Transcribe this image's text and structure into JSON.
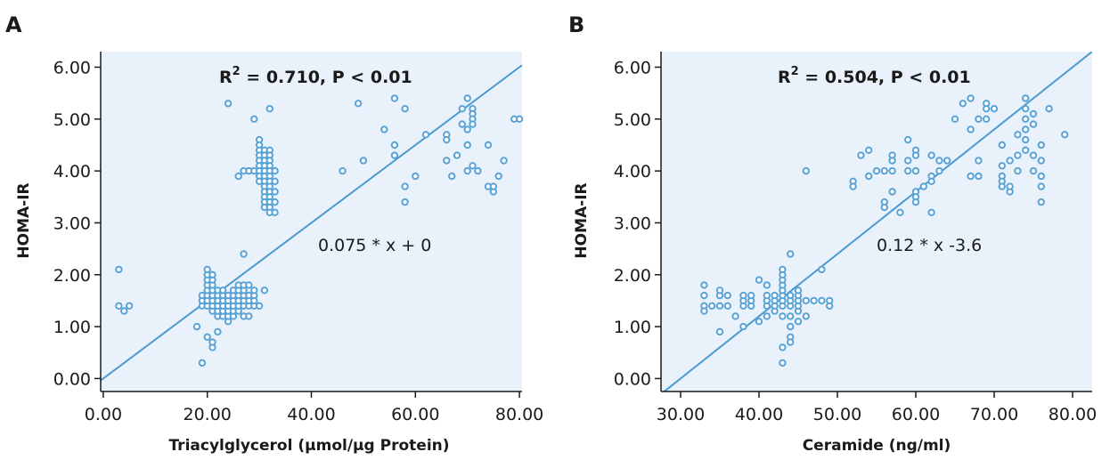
{
  "colors": {
    "plot_bg": "#e9f1fb",
    "marker": "#5aa3d6",
    "fit_line": "#4a9ad2",
    "axis": "#1a1a1a"
  },
  "chart_data": [
    {
      "type": "scatter",
      "panel_label": "A",
      "title": "",
      "xlabel": "Triacylglycerol (μmol/μg Protein)",
      "ylabel": "HOMA-IR",
      "xlim": [
        -0.5,
        80.5
      ],
      "ylim": [
        -0.25,
        6.3
      ],
      "xticks": [
        0,
        20,
        40,
        60,
        80
      ],
      "xtick_labels": [
        "0.00",
        "20.00",
        "40.00",
        "60.00",
        "80.00"
      ],
      "yticks": [
        0,
        1,
        2,
        3,
        4,
        5,
        6
      ],
      "ytick_labels": [
        "0.00",
        "1.00",
        "2.00",
        "3.00",
        "4.00",
        "5.00",
        "6.00"
      ],
      "grid": false,
      "annotation": {
        "prefix": "R",
        "sup": "2",
        "text": " = 0.710, P < 0.01"
      },
      "equation_label": "0.075 * x + 0",
      "fit_line": {
        "slope": 0.075,
        "intercept": 0
      },
      "points": [
        [
          3,
          2.1
        ],
        [
          3,
          1.4
        ],
        [
          4,
          1.3
        ],
        [
          5,
          1.4
        ],
        [
          18,
          1.0
        ],
        [
          19,
          0.3
        ],
        [
          20,
          0.8
        ],
        [
          21,
          0.6
        ],
        [
          21,
          0.7
        ],
        [
          22,
          0.9
        ],
        [
          19,
          1.4
        ],
        [
          19,
          1.5
        ],
        [
          19,
          1.6
        ],
        [
          20,
          1.4
        ],
        [
          20,
          1.5
        ],
        [
          20,
          1.6
        ],
        [
          20,
          1.7
        ],
        [
          20,
          1.8
        ],
        [
          20,
          1.9
        ],
        [
          20,
          2.0
        ],
        [
          20,
          2.1
        ],
        [
          21,
          1.3
        ],
        [
          21,
          1.4
        ],
        [
          21,
          1.5
        ],
        [
          21,
          1.6
        ],
        [
          21,
          1.7
        ],
        [
          21,
          1.8
        ],
        [
          21,
          1.9
        ],
        [
          21,
          2.0
        ],
        [
          22,
          1.2
        ],
        [
          22,
          1.3
        ],
        [
          22,
          1.4
        ],
        [
          22,
          1.5
        ],
        [
          22,
          1.6
        ],
        [
          22,
          1.7
        ],
        [
          23,
          1.2
        ],
        [
          23,
          1.3
        ],
        [
          23,
          1.4
        ],
        [
          23,
          1.5
        ],
        [
          23,
          1.6
        ],
        [
          23,
          1.7
        ],
        [
          24,
          1.1
        ],
        [
          24,
          1.2
        ],
        [
          24,
          1.3
        ],
        [
          24,
          1.4
        ],
        [
          24,
          1.5
        ],
        [
          24,
          1.6
        ],
        [
          25,
          1.2
        ],
        [
          25,
          1.3
        ],
        [
          25,
          1.4
        ],
        [
          25,
          1.5
        ],
        [
          25,
          1.6
        ],
        [
          25,
          1.7
        ],
        [
          26,
          1.3
        ],
        [
          26,
          1.4
        ],
        [
          26,
          1.5
        ],
        [
          26,
          1.6
        ],
        [
          26,
          1.7
        ],
        [
          26,
          1.8
        ],
        [
          27,
          1.2
        ],
        [
          27,
          1.4
        ],
        [
          27,
          1.5
        ],
        [
          27,
          1.6
        ],
        [
          27,
          1.7
        ],
        [
          27,
          1.8
        ],
        [
          28,
          1.2
        ],
        [
          28,
          1.4
        ],
        [
          28,
          1.5
        ],
        [
          28,
          1.6
        ],
        [
          28,
          1.8
        ],
        [
          29,
          1.4
        ],
        [
          29,
          1.5
        ],
        [
          29,
          1.6
        ],
        [
          29,
          1.7
        ],
        [
          30,
          1.4
        ],
        [
          31,
          1.7
        ],
        [
          27,
          2.4
        ],
        [
          24,
          5.3
        ],
        [
          26,
          3.9
        ],
        [
          27,
          4.0
        ],
        [
          28,
          4.0
        ],
        [
          29,
          4.0
        ],
        [
          30,
          4.6
        ],
        [
          30,
          4.5
        ],
        [
          30,
          4.4
        ],
        [
          30,
          4.3
        ],
        [
          30,
          4.2
        ],
        [
          30,
          4.1
        ],
        [
          30,
          4.0
        ],
        [
          30,
          3.9
        ],
        [
          30,
          3.8
        ],
        [
          31,
          4.4
        ],
        [
          31,
          4.3
        ],
        [
          31,
          4.2
        ],
        [
          31,
          4.1
        ],
        [
          31,
          4.0
        ],
        [
          31,
          3.9
        ],
        [
          31,
          3.8
        ],
        [
          31,
          3.7
        ],
        [
          31,
          3.6
        ],
        [
          31,
          3.5
        ],
        [
          31,
          3.4
        ],
        [
          31,
          3.3
        ],
        [
          32,
          4.4
        ],
        [
          32,
          4.3
        ],
        [
          32,
          4.2
        ],
        [
          32,
          4.1
        ],
        [
          32,
          4.0
        ],
        [
          32,
          3.9
        ],
        [
          32,
          3.8
        ],
        [
          32,
          3.7
        ],
        [
          32,
          3.6
        ],
        [
          32,
          3.5
        ],
        [
          32,
          3.4
        ],
        [
          32,
          3.3
        ],
        [
          32,
          3.2
        ],
        [
          33,
          4.0
        ],
        [
          33,
          3.8
        ],
        [
          33,
          3.6
        ],
        [
          33,
          3.4
        ],
        [
          33,
          3.2
        ],
        [
          29,
          5.0
        ],
        [
          32,
          5.2
        ],
        [
          46,
          4.0
        ],
        [
          49,
          5.3
        ],
        [
          50,
          4.2
        ],
        [
          54,
          4.8
        ],
        [
          56,
          5.4
        ],
        [
          56,
          4.5
        ],
        [
          56,
          4.3
        ],
        [
          58,
          5.2
        ],
        [
          58,
          3.7
        ],
        [
          58,
          3.4
        ],
        [
          60,
          3.9
        ],
        [
          62,
          4.7
        ],
        [
          66,
          4.7
        ],
        [
          66,
          4.6
        ],
        [
          66,
          4.2
        ],
        [
          67,
          3.9
        ],
        [
          68,
          4.3
        ],
        [
          69,
          5.2
        ],
        [
          69,
          4.9
        ],
        [
          70,
          5.4
        ],
        [
          70,
          4.8
        ],
        [
          70,
          4.5
        ],
        [
          70,
          4.0
        ],
        [
          71,
          5.2
        ],
        [
          71,
          5.1
        ],
        [
          71,
          5.0
        ],
        [
          71,
          4.9
        ],
        [
          71,
          4.1
        ],
        [
          72,
          4.0
        ],
        [
          74,
          4.5
        ],
        [
          74,
          3.7
        ],
        [
          75,
          3.6
        ],
        [
          75,
          3.7
        ],
        [
          76,
          3.9
        ],
        [
          77,
          4.2
        ],
        [
          79,
          5.0
        ],
        [
          80,
          5.0
        ]
      ]
    },
    {
      "type": "scatter",
      "panel_label": "B",
      "title": "",
      "xlabel": "Ceramide (ng/ml)",
      "ylabel": "HOMA-IR",
      "xlim": [
        27.5,
        82.5
      ],
      "ylim": [
        -0.25,
        6.3
      ],
      "xticks": [
        30,
        40,
        50,
        60,
        70,
        80
      ],
      "xtick_labels": [
        "30.00",
        "40.00",
        "50.00",
        "60.00",
        "70.00",
        "80.00"
      ],
      "yticks": [
        0,
        1,
        2,
        3,
        4,
        5,
        6
      ],
      "ytick_labels": [
        "0.00",
        "1.00",
        "2.00",
        "3.00",
        "4.00",
        "5.00",
        "6.00"
      ],
      "grid": false,
      "annotation": {
        "prefix": "R",
        "sup": "2",
        "text": " = 0.504, P < 0.01"
      },
      "equation_label": "0.12 * x -3.6",
      "fit_line": {
        "slope": 0.12,
        "intercept": -3.6
      },
      "points": [
        [
          33,
          1.8
        ],
        [
          33,
          1.6
        ],
        [
          33,
          1.4
        ],
        [
          33,
          1.3
        ],
        [
          34,
          1.4
        ],
        [
          35,
          1.4
        ],
        [
          35,
          1.6
        ],
        [
          35,
          1.7
        ],
        [
          35,
          0.9
        ],
        [
          36,
          1.4
        ],
        [
          36,
          1.6
        ],
        [
          37,
          1.2
        ],
        [
          38,
          1.4
        ],
        [
          38,
          1.5
        ],
        [
          38,
          1.6
        ],
        [
          38,
          1.0
        ],
        [
          39,
          1.4
        ],
        [
          39,
          1.5
        ],
        [
          39,
          1.6
        ],
        [
          40,
          1.1
        ],
        [
          40,
          1.9
        ],
        [
          41,
          1.2
        ],
        [
          41,
          1.4
        ],
        [
          41,
          1.5
        ],
        [
          41,
          1.6
        ],
        [
          41,
          1.8
        ],
        [
          42,
          1.3
        ],
        [
          42,
          1.4
        ],
        [
          42,
          1.5
        ],
        [
          42,
          1.6
        ],
        [
          43,
          1.2
        ],
        [
          43,
          1.4
        ],
        [
          43,
          1.5
        ],
        [
          43,
          1.6
        ],
        [
          43,
          1.7
        ],
        [
          43,
          1.8
        ],
        [
          43,
          1.9
        ],
        [
          43,
          2.0
        ],
        [
          43,
          2.1
        ],
        [
          43,
          0.6
        ],
        [
          43,
          0.3
        ],
        [
          44,
          1.2
        ],
        [
          44,
          1.4
        ],
        [
          44,
          1.5
        ],
        [
          44,
          1.6
        ],
        [
          44,
          1.0
        ],
        [
          44,
          0.8
        ],
        [
          44,
          0.7
        ],
        [
          44,
          2.4
        ],
        [
          45,
          1.1
        ],
        [
          45,
          1.3
        ],
        [
          45,
          1.4
        ],
        [
          45,
          1.5
        ],
        [
          45,
          1.6
        ],
        [
          45,
          1.7
        ],
        [
          46,
          1.2
        ],
        [
          46,
          1.5
        ],
        [
          46,
          4.0
        ],
        [
          47,
          1.5
        ],
        [
          48,
          1.5
        ],
        [
          48,
          2.1
        ],
        [
          49,
          1.4
        ],
        [
          49,
          1.5
        ],
        [
          52,
          3.8
        ],
        [
          52,
          3.7
        ],
        [
          53,
          4.3
        ],
        [
          54,
          4.4
        ],
        [
          54,
          3.9
        ],
        [
          55,
          4.0
        ],
        [
          56,
          4.0
        ],
        [
          56,
          3.4
        ],
        [
          56,
          3.3
        ],
        [
          57,
          4.3
        ],
        [
          57,
          4.2
        ],
        [
          57,
          4.0
        ],
        [
          57,
          3.6
        ],
        [
          58,
          3.2
        ],
        [
          59,
          4.6
        ],
        [
          59,
          4.2
        ],
        [
          59,
          4.0
        ],
        [
          60,
          4.4
        ],
        [
          60,
          4.3
        ],
        [
          60,
          4.0
        ],
        [
          60,
          3.6
        ],
        [
          60,
          3.5
        ],
        [
          60,
          3.4
        ],
        [
          61,
          3.7
        ],
        [
          62,
          4.3
        ],
        [
          62,
          3.9
        ],
        [
          62,
          3.8
        ],
        [
          62,
          3.2
        ],
        [
          63,
          4.2
        ],
        [
          63,
          4.0
        ],
        [
          64,
          4.2
        ],
        [
          65,
          5.0
        ],
        [
          66,
          5.3
        ],
        [
          67,
          5.4
        ],
        [
          67,
          4.8
        ],
        [
          67,
          3.9
        ],
        [
          68,
          5.0
        ],
        [
          68,
          4.2
        ],
        [
          68,
          3.9
        ],
        [
          69,
          5.3
        ],
        [
          69,
          5.2
        ],
        [
          69,
          5.0
        ],
        [
          70,
          5.2
        ],
        [
          71,
          4.5
        ],
        [
          71,
          4.1
        ],
        [
          71,
          3.9
        ],
        [
          71,
          3.8
        ],
        [
          71,
          3.7
        ],
        [
          72,
          4.2
        ],
        [
          72,
          3.6
        ],
        [
          72,
          3.7
        ],
        [
          73,
          4.7
        ],
        [
          73,
          4.3
        ],
        [
          73,
          4.0
        ],
        [
          74,
          5.4
        ],
        [
          74,
          5.2
        ],
        [
          74,
          5.0
        ],
        [
          74,
          4.8
        ],
        [
          74,
          4.6
        ],
        [
          74,
          4.4
        ],
        [
          75,
          5.1
        ],
        [
          75,
          4.9
        ],
        [
          75,
          4.3
        ],
        [
          75,
          4.0
        ],
        [
          76,
          4.5
        ],
        [
          76,
          4.2
        ],
        [
          76,
          3.9
        ],
        [
          76,
          3.7
        ],
        [
          76,
          3.4
        ],
        [
          77,
          5.2
        ],
        [
          79,
          4.7
        ]
      ]
    }
  ]
}
